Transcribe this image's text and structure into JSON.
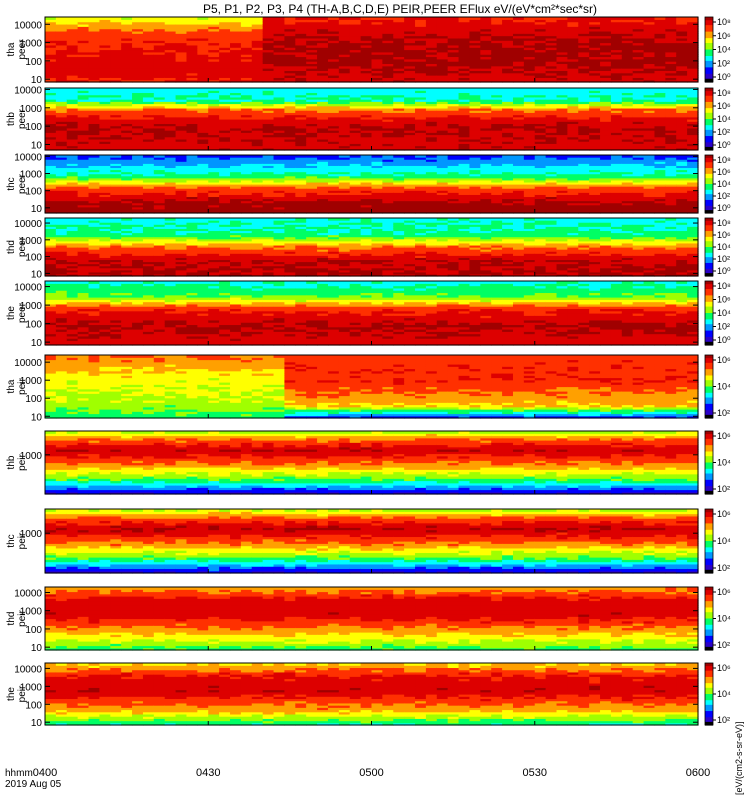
{
  "chart_data": {
    "type": "heatmap",
    "title": "P5, P1, P2, P3, P4 (TH-A,B,C,D,E) PEIR,PEER EFlux eV/(eV*cm²*sec*sr)",
    "x_axis": {
      "label_line1": "hhmm",
      "label_line2": "2019 Aug 05",
      "ticks": [
        "0400",
        "0430",
        "0500",
        "0530",
        "0600"
      ],
      "range_minutes": [
        0,
        120
      ]
    },
    "colorbar_label": "[eV/(cm2-s-sr-eV)]",
    "colormap": [
      "#000000",
      "#2b00c8",
      "#0000ff",
      "#0096ff",
      "#00ffff",
      "#00ff64",
      "#a0ff00",
      "#ffff00",
      "#ffa000",
      "#ff3000",
      "#dd0000",
      "#a00000"
    ],
    "panels": [
      {
        "label1": "tha",
        "label2": "peer",
        "yticks": [
          "10",
          "100",
          "1000",
          "10000"
        ],
        "ylim": [
          7,
          25000
        ],
        "log_y": true,
        "cbar_ticks": [
          "10⁸",
          "10⁶",
          "10⁴",
          "10²",
          "10⁰"
        ],
        "bands": [
          {
            "e": 7,
            "l": 0.85
          },
          {
            "e": 30,
            "l": 0.92
          },
          {
            "e": 300,
            "l": 0.88
          },
          {
            "e": 3000,
            "l": 0.82
          },
          {
            "e": 25000,
            "l": 0.6
          }
        ],
        "change_minute": 40,
        "bands_after": [
          {
            "e": 7,
            "l": 0.92
          },
          {
            "e": 100,
            "l": 0.98
          },
          {
            "e": 1000,
            "l": 0.97
          },
          {
            "e": 5000,
            "l": 0.93
          },
          {
            "e": 25000,
            "l": 0.85
          }
        ]
      },
      {
        "label1": "thb",
        "label2": "peer",
        "yticks": [
          "10",
          "100",
          "1000",
          "10000"
        ],
        "ylim": [
          5,
          12000
        ],
        "log_y": true,
        "cbar_ticks": [
          "10⁸",
          "10⁶",
          "10⁴",
          "10²",
          "10⁰"
        ],
        "bands": [
          {
            "e": 5,
            "l": 0.92
          },
          {
            "e": 100,
            "l": 0.96
          },
          {
            "e": 800,
            "l": 0.78
          },
          {
            "e": 2500,
            "l": 0.42
          },
          {
            "e": 12000,
            "l": 0.36
          }
        ]
      },
      {
        "label1": "thc",
        "label2": "peer",
        "yticks": [
          "10",
          "100",
          "1000",
          "10000"
        ],
        "ylim": [
          5,
          12000
        ],
        "log_y": true,
        "cbar_ticks": [
          "10⁸",
          "10⁶",
          "10⁴",
          "10²",
          "10⁰"
        ],
        "bands": [
          {
            "e": 5,
            "l": 1.0
          },
          {
            "e": 20,
            "l": 0.98
          },
          {
            "e": 150,
            "l": 0.8
          },
          {
            "e": 700,
            "l": 0.45
          },
          {
            "e": 12000,
            "l": 0.2
          }
        ]
      },
      {
        "label1": "thd",
        "label2": "peer",
        "yticks": [
          "10",
          "100",
          "1000",
          "10000"
        ],
        "ylim": [
          7,
          20000
        ],
        "log_y": true,
        "cbar_ticks": [
          "10⁸",
          "10⁶",
          "10⁴",
          "10²",
          "10⁰"
        ],
        "bands": [
          {
            "e": 7,
            "l": 0.96
          },
          {
            "e": 60,
            "l": 0.95
          },
          {
            "e": 400,
            "l": 0.76
          },
          {
            "e": 2000,
            "l": 0.44
          },
          {
            "e": 20000,
            "l": 0.38
          }
        ]
      },
      {
        "label1": "the",
        "label2": "peer",
        "yticks": [
          "10",
          "100",
          "1000",
          "10000"
        ],
        "ylim": [
          7,
          20000
        ],
        "log_y": true,
        "cbar_ticks": [
          "10⁸",
          "10⁶",
          "10⁴",
          "10²",
          "10⁰"
        ],
        "bands": [
          {
            "e": 7,
            "l": 0.9
          },
          {
            "e": 80,
            "l": 0.97
          },
          {
            "e": 700,
            "l": 0.84
          },
          {
            "e": 3000,
            "l": 0.5
          },
          {
            "e": 20000,
            "l": 0.38
          }
        ]
      },
      {
        "label1": "tha",
        "label2": "peir",
        "yticks": [
          "10",
          "100",
          "1000",
          "10000"
        ],
        "ylim": [
          8,
          25000
        ],
        "log_y": true,
        "cbar_ticks": [
          "10⁶",
          "10⁴",
          "10²"
        ],
        "bands": [
          {
            "e": 8,
            "l": 0.45
          },
          {
            "e": 100,
            "l": 0.58
          },
          {
            "e": 1000,
            "l": 0.62
          },
          {
            "e": 25000,
            "l": 0.78
          }
        ],
        "change_minute": 45,
        "bands_after": [
          {
            "e": 8,
            "l": 0.15
          },
          {
            "e": 40,
            "l": 0.68
          },
          {
            "e": 1000,
            "l": 0.85
          },
          {
            "e": 25000,
            "l": 0.82
          }
        ]
      },
      {
        "label1": "thb",
        "label2": "peir",
        "yticks": [
          "1000"
        ],
        "ylim": [
          5,
          25000
        ],
        "log_y": true,
        "cbar_ticks": [
          "10⁶",
          "10⁴",
          "10²"
        ],
        "bands": [
          {
            "e": 5,
            "l": 0.1
          },
          {
            "e": 40,
            "l": 0.5
          },
          {
            "e": 300,
            "l": 0.76
          },
          {
            "e": 2000,
            "l": 0.95
          },
          {
            "e": 9000,
            "l": 0.76
          },
          {
            "e": 25000,
            "l": 0.55
          }
        ]
      },
      {
        "label1": "thc",
        "label2": "peir",
        "yticks": [
          "1000"
        ],
        "ylim": [
          5,
          25000
        ],
        "log_y": true,
        "cbar_ticks": [
          "10⁶",
          "10⁴",
          "10²"
        ],
        "bands": [
          {
            "e": 5,
            "l": 0.1
          },
          {
            "e": 40,
            "l": 0.5
          },
          {
            "e": 300,
            "l": 0.78
          },
          {
            "e": 2000,
            "l": 0.96
          },
          {
            "e": 9000,
            "l": 0.77
          },
          {
            "e": 25000,
            "l": 0.55
          }
        ]
      },
      {
        "label1": "thd",
        "label2": "peir",
        "yticks": [
          "10",
          "100",
          "1000",
          "10000"
        ],
        "ylim": [
          7,
          20000
        ],
        "log_y": true,
        "cbar_ticks": [
          "10⁶",
          "10⁴",
          "10²"
        ],
        "bands": [
          {
            "e": 7,
            "l": 0.45
          },
          {
            "e": 50,
            "l": 0.68
          },
          {
            "e": 600,
            "l": 0.92
          },
          {
            "e": 4000,
            "l": 0.9
          },
          {
            "e": 20000,
            "l": 0.72
          }
        ]
      },
      {
        "label1": "the",
        "label2": "peir",
        "yticks": [
          "10",
          "100",
          "1000",
          "10000"
        ],
        "ylim": [
          7,
          20000
        ],
        "log_y": true,
        "cbar_ticks": [
          "10⁶",
          "10⁴",
          "10²"
        ],
        "bands": [
          {
            "e": 7,
            "l": 0.4
          },
          {
            "e": 50,
            "l": 0.72
          },
          {
            "e": 600,
            "l": 0.93
          },
          {
            "e": 4000,
            "l": 0.88
          },
          {
            "e": 20000,
            "l": 0.66
          }
        ]
      }
    ]
  }
}
